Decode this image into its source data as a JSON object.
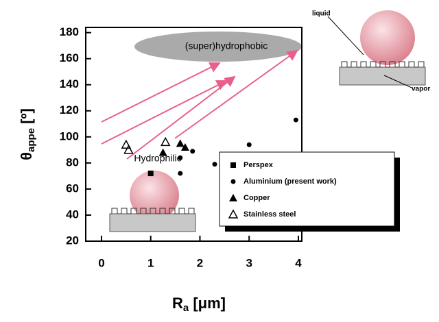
{
  "chart_data": {
    "type": "scatter",
    "x_label": {
      "text": "R",
      "subscript": "a",
      "suffix": "[μm]"
    },
    "y_label": {
      "text": "θ",
      "subscript": "appe",
      "suffix": "[º]"
    },
    "xlim": [
      -0.32,
      4.07
    ],
    "ylim": [
      20,
      184
    ],
    "xticks": [
      0,
      1,
      2,
      3,
      4
    ],
    "yticks": [
      20,
      40,
      60,
      80,
      100,
      120,
      140,
      160,
      180
    ],
    "series": [
      {
        "name": "Perspex",
        "marker": "square",
        "color": "#000000",
        "x": [
          1.0
        ],
        "values": [
          72
        ]
      },
      {
        "name": "Aluminium (present work)",
        "marker": "circle",
        "color": "#000000",
        "x": [
          1.6,
          1.6,
          1.85,
          2.3,
          3.0,
          3.95
        ],
        "values": [
          84,
          72,
          89,
          79,
          94,
          113
        ]
      },
      {
        "name": "Copper",
        "marker": "triangle",
        "color": "#000000",
        "x": [
          1.25,
          1.6,
          1.7
        ],
        "values": [
          88,
          95,
          92
        ]
      },
      {
        "name": "Stainless steel",
        "marker": "open-triangle",
        "color": "#000000",
        "x": [
          0.5,
          0.55,
          1.3
        ],
        "values": [
          94,
          90,
          96
        ]
      }
    ],
    "annotations": [
      "(super)hydrophobic",
      "Hydrophilic",
      "liquid",
      "vapor"
    ]
  }
}
